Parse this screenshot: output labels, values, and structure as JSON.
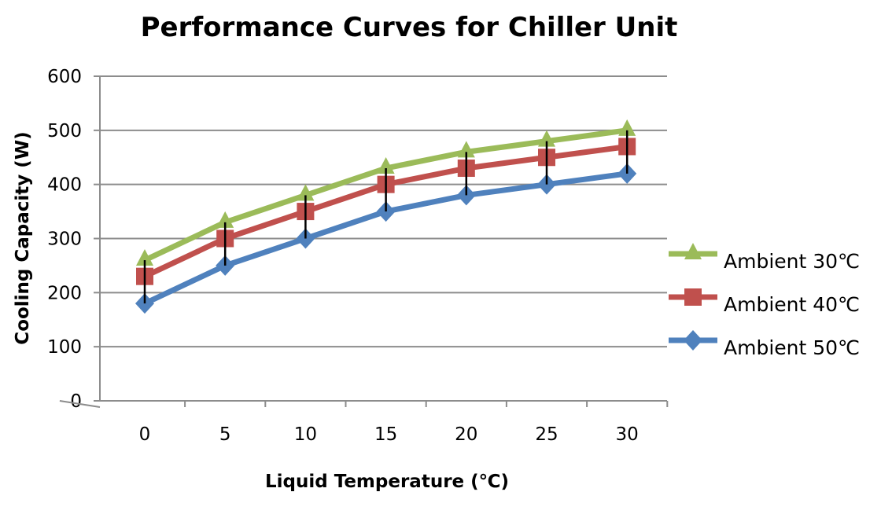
{
  "chart_data": {
    "type": "line",
    "title": "Performance Curves for Chiller Unit",
    "xlabel": "Liquid Temperature (℃)",
    "ylabel": "Cooling Capacity (W)",
    "categories": [
      "0",
      "5",
      "10",
      "15",
      "20",
      "25",
      "30"
    ],
    "ylim": [
      0,
      600
    ],
    "yticks": [
      "0",
      "100",
      "200",
      "300",
      "400",
      "500",
      "600"
    ],
    "grid": true,
    "legend_position": "right",
    "high_low_lines": true,
    "series": [
      {
        "name": "Ambient 30℃",
        "color": "#9BBB59",
        "marker": "triangle",
        "values": [
          260,
          330,
          380,
          430,
          460,
          480,
          500
        ]
      },
      {
        "name": "Ambient 40℃",
        "color": "#C0504D",
        "marker": "square",
        "values": [
          230,
          300,
          350,
          400,
          430,
          450,
          470
        ]
      },
      {
        "name": "Ambient 50℃",
        "color": "#4F81BD",
        "marker": "diamond",
        "values": [
          180,
          250,
          300,
          350,
          380,
          400,
          420
        ]
      }
    ]
  }
}
